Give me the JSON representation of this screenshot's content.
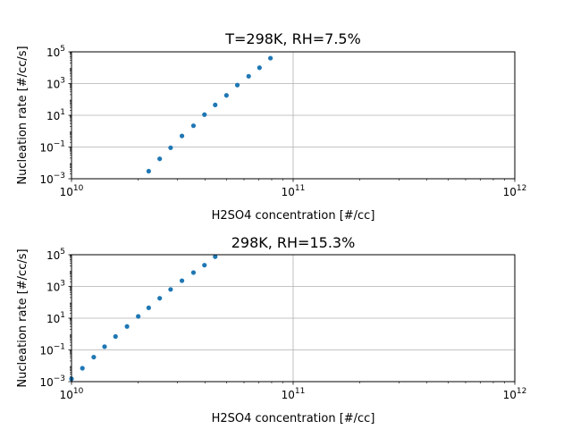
{
  "chart_data": [
    {
      "type": "scatter",
      "title": "T=298K, RH=7.5%",
      "xlabel": "H2SO4 concentration [#/cc]",
      "ylabel": "Nucleation rate [#/cc/s]",
      "xscale": "log",
      "yscale": "log",
      "xlim": [
        10000000000.0,
        1000000000000.0
      ],
      "ylim": [
        0.001,
        100000
      ],
      "x_ticks": [
        {
          "base": "10",
          "exp": "10"
        },
        {
          "base": "10",
          "exp": "11"
        },
        {
          "base": "10",
          "exp": "12"
        }
      ],
      "y_ticks": [
        {
          "base": "10",
          "exp": "−3"
        },
        {
          "base": "10",
          "exp": "−1"
        },
        {
          "base": "10",
          "exp": "1"
        },
        {
          "base": "10",
          "exp": "3"
        },
        {
          "base": "10",
          "exp": "5"
        }
      ],
      "grid": true,
      "marker_color": "#1f77b4",
      "series": [
        {
          "x": [
            22300000000.0,
            25000000000.0,
            28000000000.0,
            31500000000.0,
            35500000000.0,
            39800000000.0,
            44500000000.0,
            50000000000.0,
            56000000000.0,
            63000000000.0,
            70500000000.0,
            79000000000.0
          ],
          "y": [
            0.003,
            0.018,
            0.09,
            0.5,
            2.2,
            11,
            45,
            180,
            800,
            2900,
            10000,
            40000
          ]
        }
      ]
    },
    {
      "type": "scatter",
      "title": "298K, RH=15.3%",
      "xlabel": "H2SO4 concentration [#/cc]",
      "ylabel": "Nucleation rate [#/cc/s]",
      "xscale": "log",
      "yscale": "log",
      "xlim": [
        10000000000.0,
        1000000000000.0
      ],
      "ylim": [
        0.001,
        100000
      ],
      "x_ticks": [
        {
          "base": "10",
          "exp": "10"
        },
        {
          "base": "10",
          "exp": "11"
        },
        {
          "base": "10",
          "exp": "12"
        }
      ],
      "y_ticks": [
        {
          "base": "10",
          "exp": "−3"
        },
        {
          "base": "10",
          "exp": "−1"
        },
        {
          "base": "10",
          "exp": "1"
        },
        {
          "base": "10",
          "exp": "3"
        },
        {
          "base": "10",
          "exp": "5"
        }
      ],
      "grid": true,
      "marker_color": "#1f77b4",
      "series": [
        {
          "x": [
            10000000000.0,
            11200000000.0,
            12600000000.0,
            14100000000.0,
            15800000000.0,
            17800000000.0,
            20000000000.0,
            22300000000.0,
            25000000000.0,
            28000000000.0,
            31500000000.0,
            35500000000.0,
            39800000000.0,
            44500000000.0
          ],
          "y": [
            0.0015,
            0.007,
            0.035,
            0.16,
            0.7,
            3,
            13,
            45,
            180,
            650,
            2300,
            7500,
            22000,
            75000
          ]
        }
      ]
    }
  ]
}
